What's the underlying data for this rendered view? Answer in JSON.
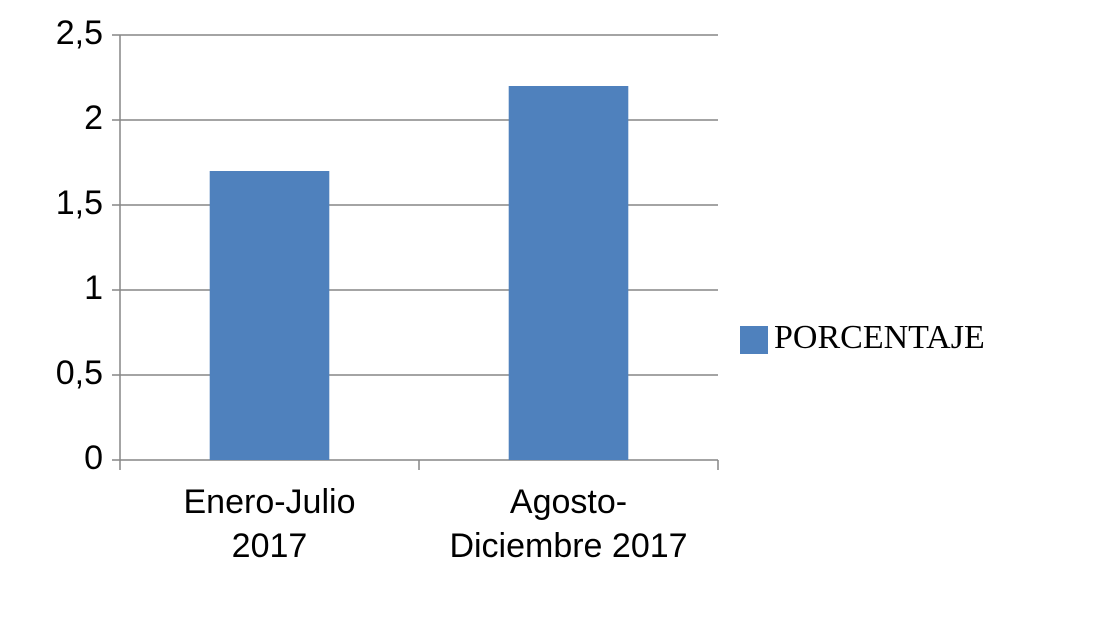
{
  "chart_data": {
    "type": "bar",
    "categories": [
      "Enero-Julio 2017",
      "Agosto-Diciembre 2017"
    ],
    "series": [
      {
        "name": "PORCENTAJE",
        "color": "#4f81bd",
        "values": [
          1.7,
          2.2
        ]
      }
    ],
    "ylim": [
      0,
      2.5
    ],
    "yticks": [
      0,
      {
        "value": 0.5,
        "label": "0,5"
      },
      1,
      {
        "value": 1.5,
        "label": "1,5"
      },
      2,
      {
        "value": 2.5,
        "label": "2,5"
      }
    ],
    "grid": true,
    "legend": "right"
  }
}
